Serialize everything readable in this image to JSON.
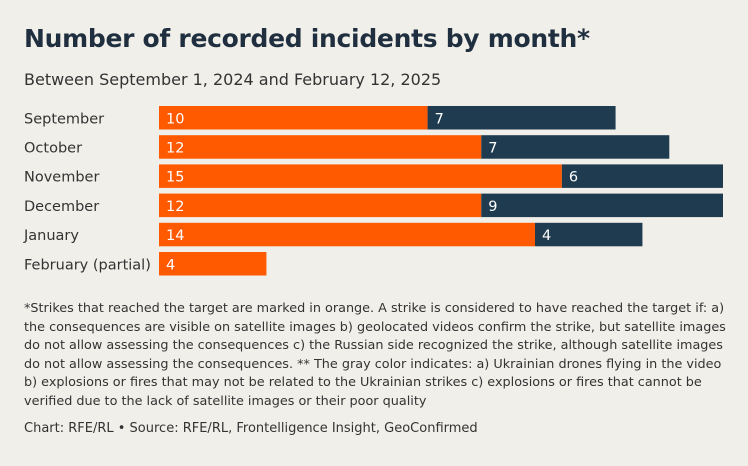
{
  "title": "Number of recorded incidents by month*",
  "subtitle": "Between September 1, 2024 and February 12, 2025",
  "footnote": "*Strikes that reached the target are marked in orange. A strike is considered to have reached the target if: a) the consequences are visible on satellite images b) geolocated videos confirm the strike, but satellite images do not allow assessing the consequences c) the Russian side recognized the strike, although satellite images do not allow assessing the consequences. ** The gray color indicates: a) Ukrainian drones flying in the video b) explosions or fires that may not be related to the Ukrainian strikes c) explosions or fires that cannot be verified due to the lack of satellite images or their poor quality",
  "source": "Chart: RFE/RL • Source: RFE/RL, Frontelligence Insight, GeoConfirmed",
  "colors": {
    "reached": "#ff5a00",
    "gray": "#1e3b4f",
    "label_text": "#ffffff"
  },
  "chart_data": {
    "type": "bar",
    "orientation": "horizontal",
    "stacked": true,
    "categories": [
      "September",
      "October",
      "November",
      "December",
      "January",
      "February (partial)"
    ],
    "series": [
      {
        "values": [
          10,
          12,
          15,
          12,
          14,
          4
        ]
      },
      {
        "values": [
          7,
          7,
          6,
          9,
          4,
          0
        ]
      }
    ],
    "xlim": [
      0,
      21
    ]
  }
}
